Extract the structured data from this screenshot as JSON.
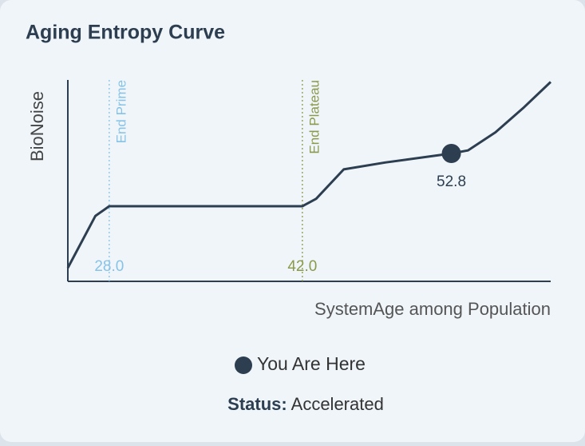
{
  "chart_data": {
    "type": "line",
    "title": "Aging Entropy Curve",
    "y_label": "BioNoise",
    "x_label": "SystemAge among Population",
    "x": [
      25,
      27,
      28,
      42,
      43,
      45,
      48,
      52.8,
      54,
      56,
      58,
      60
    ],
    "series": [
      {
        "color": "#2c3e50",
        "values": [
          6.7,
          32.5,
          37.3,
          37.3,
          41,
          55.6,
          59,
          63.5,
          65,
          74,
          86,
          99
        ]
      }
    ],
    "xlim": [
      25,
      60
    ],
    "ylim": [
      0,
      100
    ],
    "markers": [
      {
        "value": 28,
        "label": "28.0",
        "text": "End Prime",
        "color": "#87c3e6"
      },
      {
        "value": 42,
        "label": "42.0",
        "text": "End Plateau",
        "color": "#8a9a4a"
      }
    ],
    "point": {
      "name": "You Are Here",
      "x": 52.8,
      "y": 63.5,
      "color": "#2c3e50"
    }
  },
  "status": {
    "label": "Status:",
    "value": "Accelerated"
  }
}
